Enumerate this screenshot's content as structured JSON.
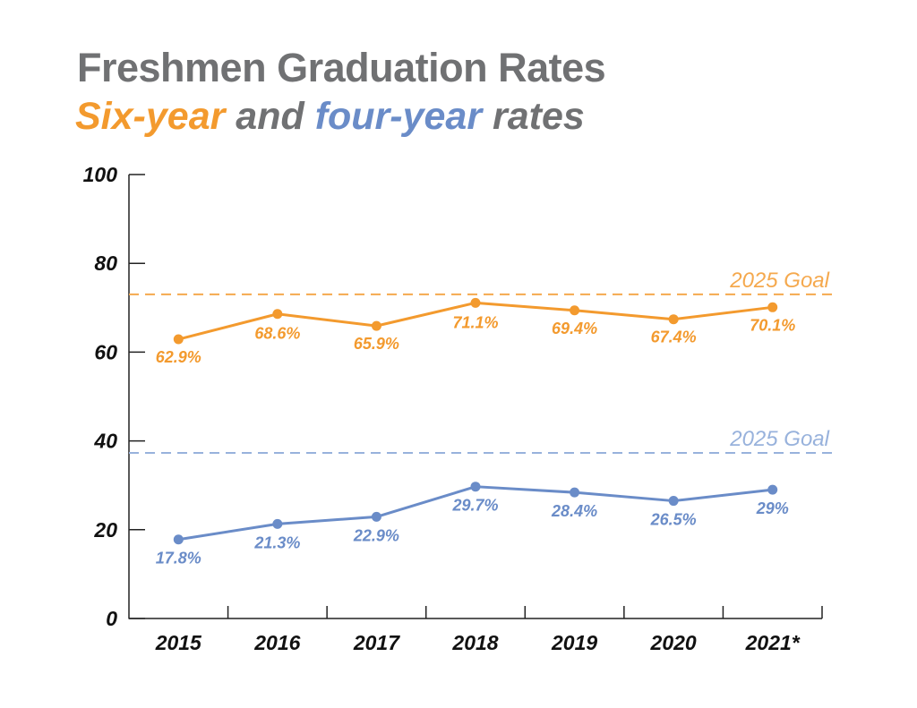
{
  "title": "Freshmen Graduation Rates",
  "subtitle": {
    "part1": "Six-year",
    "part2": " and ",
    "part3": "four-year",
    "part4": " rates"
  },
  "colors": {
    "six_year": "#F39A2E",
    "four_year": "#6A8CC8",
    "six_year_goal": "#F5A94E",
    "four_year_goal": "#98B2DC",
    "title": "#707173",
    "axis": "#222222"
  },
  "chart_data": {
    "type": "line",
    "title": "Freshmen Graduation Rates",
    "subtitle": "Six-year and four-year rates",
    "categories": [
      "2015",
      "2016",
      "2017",
      "2018",
      "2019",
      "2020",
      "2021*"
    ],
    "ylim": [
      0,
      100
    ],
    "yticks": [
      0,
      20,
      40,
      60,
      80,
      100
    ],
    "grid": false,
    "series": [
      {
        "name": "Six-year",
        "values": [
          62.9,
          68.6,
          65.9,
          71.1,
          69.4,
          67.4,
          70.1
        ],
        "labels": [
          "62.9%",
          "68.6%",
          "65.9%",
          "71.1%",
          "69.4%",
          "67.4%",
          "70.1%"
        ]
      },
      {
        "name": "four-year",
        "values": [
          17.8,
          21.3,
          22.9,
          29.7,
          28.4,
          26.5,
          29
        ],
        "labels": [
          "17.8%",
          "21.3%",
          "22.9%",
          "29.7%",
          "28.4%",
          "26.5%",
          "29%"
        ]
      }
    ],
    "reference_lines": [
      {
        "label": "2025 Goal",
        "value": 73,
        "series": "Six-year"
      },
      {
        "label": "2025 Goal",
        "value": 37.3,
        "series": "four-year"
      }
    ]
  }
}
